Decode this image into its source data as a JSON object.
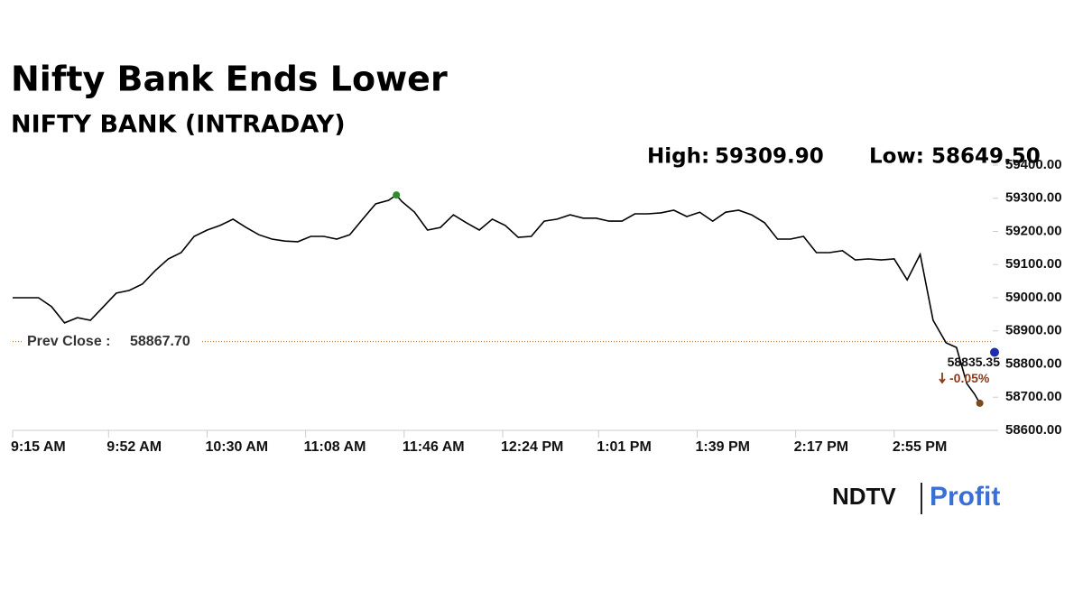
{
  "chart_data": {
    "type": "line",
    "title": "Nifty Bank Ends Lower",
    "subtitle": "NIFTY BANK (INTRADAY)",
    "high_label": "High:",
    "high": {
      "value": 59309.9,
      "label": "59309.90"
    },
    "low_label": "Low:",
    "low": {
      "value": 58649.5,
      "label": "58649.50"
    },
    "prev_close_label": "Prev Close :",
    "prev_close": {
      "value": 58867.7,
      "label": "58867.70"
    },
    "last": {
      "value": 58835.35,
      "label": "58835.35"
    },
    "change_label": "-0.05%",
    "color": "#000000",
    "x": [
      0,
      5,
      10,
      15,
      20,
      25,
      30,
      35,
      40,
      45,
      50,
      55,
      60,
      65,
      70,
      75,
      80,
      85,
      90,
      95,
      100,
      105,
      110,
      115,
      120,
      125,
      130,
      135,
      140,
      145,
      148,
      150,
      155,
      160,
      165,
      170,
      175,
      180,
      185,
      190,
      195,
      200,
      205,
      210,
      215,
      220,
      225,
      230,
      235,
      240,
      245,
      250,
      255,
      260,
      265,
      270,
      275,
      280,
      285,
      290,
      295,
      300,
      305,
      310,
      315,
      320,
      325,
      330,
      335,
      340,
      345,
      350,
      355,
      360,
      364,
      368,
      371,
      373
    ],
    "values": [
      59000,
      59000,
      59000,
      58973,
      58924,
      58940,
      58932,
      58973,
      59014,
      59022,
      59041,
      59082,
      59117,
      59136,
      59185,
      59204,
      59218,
      59237,
      59212,
      59190,
      59177,
      59171,
      59169,
      59185,
      59185,
      59177,
      59190,
      59237,
      59283,
      59294,
      59309.9,
      59291,
      59258,
      59204,
      59212,
      59250,
      59226,
      59204,
      59237,
      59218,
      59182,
      59185,
      59231,
      59237,
      59250,
      59240,
      59240,
      59231,
      59231,
      59253,
      59253,
      59256,
      59264,
      59245,
      59258,
      59231,
      59258,
      59264,
      59250,
      59226,
      59177,
      59177,
      59185,
      59136,
      59136,
      59142,
      59114,
      59117,
      59114,
      59117,
      59054,
      59131,
      58932,
      58864,
      58850,
      58741,
      58709,
      58682
    ],
    "xlim": [
      0,
      378
    ],
    "xticks": [
      {
        "value": 0,
        "label": "9:15 AM"
      },
      {
        "value": 37,
        "label": "9:52 AM"
      },
      {
        "value": 75,
        "label": "10:30 AM"
      },
      {
        "value": 113,
        "label": "11:08 AM"
      },
      {
        "value": 151,
        "label": "11:46 AM"
      },
      {
        "value": 189,
        "label": "12:24 PM"
      },
      {
        "value": 226,
        "label": "1:01 PM"
      },
      {
        "value": 264,
        "label": "1:39 PM"
      },
      {
        "value": 302,
        "label": "2:17 PM"
      },
      {
        "value": 340,
        "label": "2:55 PM"
      }
    ],
    "ylim": [
      58600,
      59400
    ],
    "yticks": [
      {
        "value": 58600,
        "label": "58600.00"
      },
      {
        "value": 58700,
        "label": "58700.00"
      },
      {
        "value": 58800,
        "label": "58800.00"
      },
      {
        "value": 58900,
        "label": "58900.00"
      },
      {
        "value": 59000,
        "label": "59000.00"
      },
      {
        "value": 59100,
        "label": "59100.00"
      },
      {
        "value": 59200,
        "label": "59200.00"
      },
      {
        "value": 59300,
        "label": "59300.00"
      },
      {
        "value": 59400,
        "label": "59400.00"
      }
    ],
    "grid": false,
    "brand": {
      "name": "NDTV",
      "product": "Profit"
    }
  }
}
